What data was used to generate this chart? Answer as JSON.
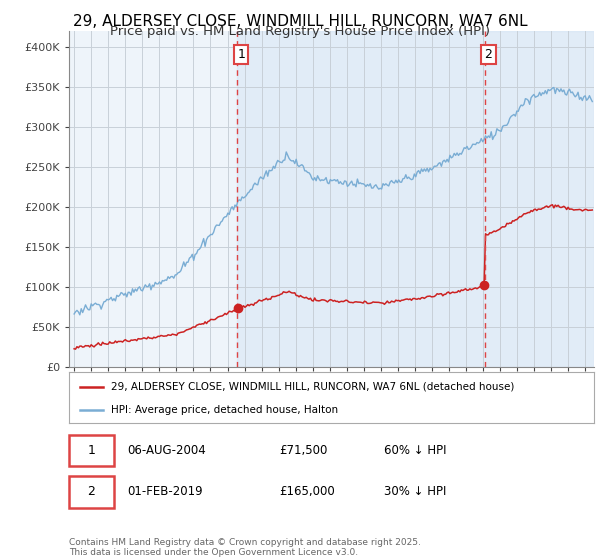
{
  "title_line1": "29, ALDERSEY CLOSE, WINDMILL HILL, RUNCORN, WA7 6NL",
  "title_line2": "Price paid vs. HM Land Registry's House Price Index (HPI)",
  "ylim": [
    0,
    420000
  ],
  "yticks": [
    0,
    50000,
    100000,
    150000,
    200000,
    250000,
    300000,
    350000,
    400000
  ],
  "ytick_labels": [
    "£0",
    "£50K",
    "£100K",
    "£150K",
    "£200K",
    "£250K",
    "£300K",
    "£350K",
    "£400K"
  ],
  "xlim_start": 1994.7,
  "xlim_end": 2025.5,
  "xticks": [
    1995,
    1996,
    1997,
    1998,
    1999,
    2000,
    2001,
    2002,
    2003,
    2004,
    2005,
    2006,
    2007,
    2008,
    2009,
    2010,
    2011,
    2012,
    2013,
    2014,
    2015,
    2016,
    2017,
    2018,
    2019,
    2020,
    2021,
    2022,
    2023,
    2024,
    2025
  ],
  "sale1_date": 2004.58,
  "sale1_price": 71500,
  "sale1_label": "1",
  "sale2_date": 2019.08,
  "sale2_price": 165000,
  "sale2_label": "2",
  "vline_color": "#dd4444",
  "hpi_color": "#7aadd4",
  "sale_color": "#cc2222",
  "bg_color": "#e8f0f8",
  "plot_bg": "#eef4fa",
  "grid_color": "#c8d0d8",
  "legend_label_sale": "29, ALDERSEY CLOSE, WINDMILL HILL, RUNCORN, WA7 6NL (detached house)",
  "legend_label_hpi": "HPI: Average price, detached house, Halton",
  "info1_date": "06-AUG-2004",
  "info1_price": "£71,500",
  "info1_hpi": "60% ↓ HPI",
  "info2_date": "01-FEB-2019",
  "info2_price": "£165,000",
  "info2_hpi": "30% ↓ HPI",
  "footer": "Contains HM Land Registry data © Crown copyright and database right 2025.\nThis data is licensed under the Open Government Licence v3.0.",
  "title_fontsize": 11,
  "subtitle_fontsize": 9.5
}
